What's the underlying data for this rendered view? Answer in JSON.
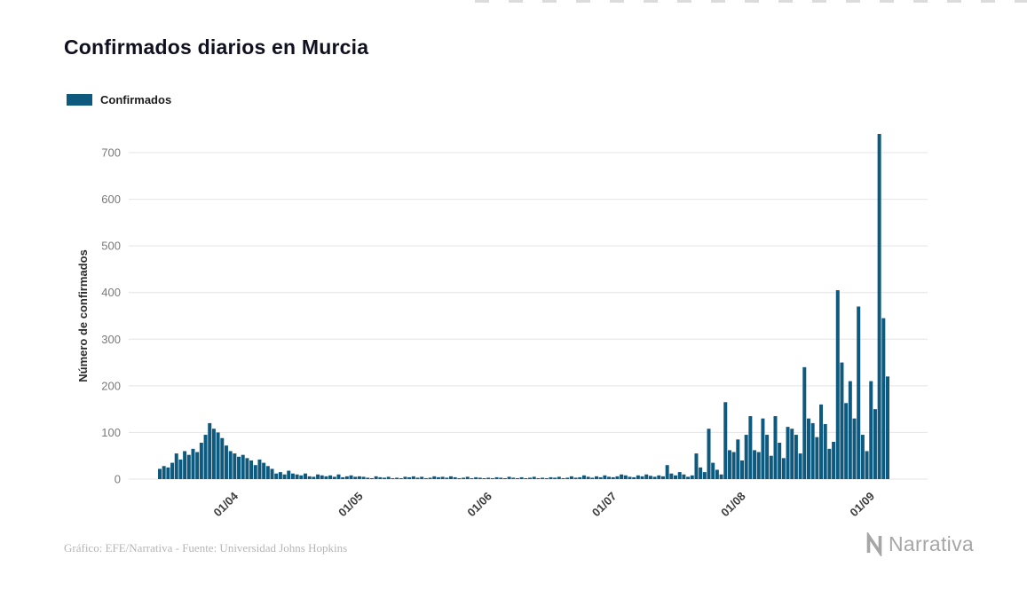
{
  "page": {
    "title": "Confirmados diarios en Murcia",
    "legend": {
      "label": "Confirmados"
    },
    "footer": {
      "credit": "Gráfico: EFE/Narrativa - Fuente: Universidad Johns Hopkins"
    },
    "brand": {
      "name": "Narrativa"
    }
  },
  "colors": {
    "bar": "#0e5a7e",
    "grid": "#e4e4e4",
    "axis_text": "#7a7a7a",
    "tick_text": "#3d3d3d",
    "title": "#101020",
    "credit": "#b6b6b6",
    "brand": "#a6a6a6"
  },
  "chart_data": {
    "type": "bar",
    "title": "Confirmados diarios en Murcia",
    "xlabel": "",
    "ylabel": "Número de confirmados",
    "legend": [
      "Confirmados"
    ],
    "legend_position": "top-left",
    "grid": true,
    "ylim": [
      0,
      760
    ],
    "y_ticks": [
      0,
      100,
      200,
      300,
      400,
      500,
      600,
      700
    ],
    "x_tick_labels": [
      "01/04",
      "01/05",
      "01/06",
      "01/07",
      "01/08",
      "01/09"
    ],
    "dates": [
      "13/03",
      "14/03",
      "15/03",
      "16/03",
      "17/03",
      "18/03",
      "19/03",
      "20/03",
      "21/03",
      "22/03",
      "23/03",
      "24/03",
      "25/03",
      "26/03",
      "27/03",
      "28/03",
      "29/03",
      "30/03",
      "31/03",
      "01/04",
      "02/04",
      "03/04",
      "04/04",
      "05/04",
      "06/04",
      "07/04",
      "08/04",
      "09/04",
      "10/04",
      "11/04",
      "12/04",
      "13/04",
      "14/04",
      "15/04",
      "16/04",
      "17/04",
      "18/04",
      "19/04",
      "20/04",
      "21/04",
      "22/04",
      "23/04",
      "24/04",
      "25/04",
      "26/04",
      "27/04",
      "28/04",
      "29/04",
      "30/04",
      "01/05",
      "02/05",
      "03/05",
      "04/05",
      "05/05",
      "06/05",
      "07/05",
      "08/05",
      "09/05",
      "10/05",
      "11/05",
      "12/05",
      "13/05",
      "14/05",
      "15/05",
      "16/05",
      "17/05",
      "18/05",
      "19/05",
      "20/05",
      "21/05",
      "22/05",
      "23/05",
      "24/05",
      "25/05",
      "26/05",
      "27/05",
      "28/05",
      "29/05",
      "30/05",
      "31/05",
      "01/06",
      "02/06",
      "03/06",
      "04/06",
      "05/06",
      "06/06",
      "07/06",
      "08/06",
      "09/06",
      "10/06",
      "11/06",
      "12/06",
      "13/06",
      "14/06",
      "15/06",
      "16/06",
      "17/06",
      "18/06",
      "19/06",
      "20/06",
      "21/06",
      "22/06",
      "23/06",
      "24/06",
      "25/06",
      "26/06",
      "27/06",
      "28/06",
      "29/06",
      "30/06",
      "01/07",
      "02/07",
      "03/07",
      "04/07",
      "05/07",
      "06/07",
      "07/07",
      "08/07",
      "09/07",
      "10/07",
      "11/07",
      "12/07",
      "13/07",
      "14/07",
      "15/07",
      "16/07",
      "17/07",
      "18/07",
      "19/07",
      "20/07",
      "21/07",
      "22/07",
      "23/07",
      "24/07",
      "25/07",
      "26/07",
      "27/07",
      "28/07",
      "29/07",
      "30/07",
      "31/07",
      "01/08",
      "02/08",
      "03/08",
      "04/08",
      "05/08",
      "06/08",
      "07/08",
      "08/08",
      "09/08",
      "10/08",
      "11/08",
      "12/08",
      "13/08",
      "14/08",
      "15/08",
      "16/08",
      "17/08",
      "18/08",
      "19/08",
      "20/08",
      "21/08",
      "22/08",
      "23/08",
      "24/08",
      "25/08",
      "26/08",
      "27/08",
      "28/08",
      "29/08",
      "30/08",
      "31/08",
      "01/09",
      "02/09",
      "03/09",
      "04/09"
    ],
    "values": [
      22,
      28,
      25,
      35,
      55,
      42,
      60,
      52,
      65,
      58,
      78,
      95,
      120,
      108,
      100,
      88,
      72,
      60,
      55,
      48,
      52,
      45,
      40,
      30,
      42,
      35,
      28,
      22,
      12,
      15,
      10,
      18,
      12,
      10,
      8,
      12,
      6,
      5,
      10,
      8,
      6,
      8,
      5,
      10,
      4,
      6,
      8,
      5,
      6,
      5,
      3,
      2,
      6,
      4,
      3,
      5,
      2,
      3,
      2,
      5,
      4,
      6,
      3,
      5,
      2,
      3,
      6,
      4,
      5,
      3,
      6,
      4,
      2,
      3,
      5,
      2,
      4,
      3,
      2,
      3,
      2,
      4,
      3,
      2,
      5,
      3,
      2,
      4,
      2,
      3,
      5,
      2,
      3,
      2,
      4,
      3,
      5,
      2,
      3,
      6,
      3,
      4,
      8,
      5,
      3,
      6,
      4,
      8,
      5,
      4,
      6,
      10,
      8,
      5,
      4,
      8,
      6,
      10,
      7,
      5,
      8,
      6,
      30,
      12,
      8,
      15,
      10,
      5,
      8,
      55,
      25,
      15,
      108,
      35,
      20,
      10,
      165,
      62,
      58,
      85,
      40,
      95,
      135,
      62,
      58,
      130,
      95,
      50,
      135,
      78,
      45,
      112,
      108,
      95,
      55,
      240,
      130,
      120,
      90,
      160,
      118,
      65,
      80,
      405,
      250,
      163,
      210,
      130,
      370,
      95,
      60,
      210,
      150,
      740,
      345,
      220
    ]
  }
}
